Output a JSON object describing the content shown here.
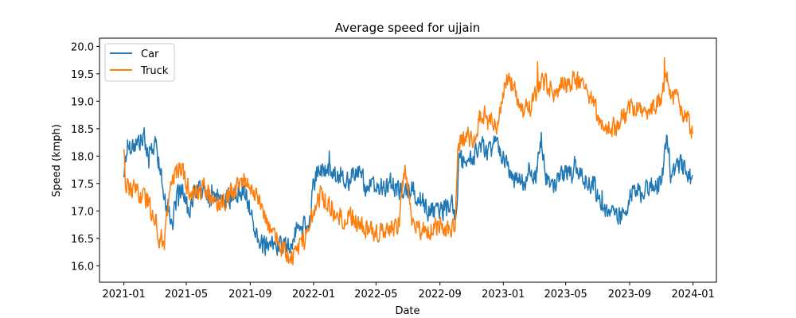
{
  "chart_data": {
    "type": "line",
    "title": "Average speed for ujjain",
    "xlabel": "Date",
    "ylabel": "Speed (kmph)",
    "x_start": "2021-01-01",
    "x_end": "2023-12-31",
    "xlim": [
      "2020-11-15",
      "2024-02-15"
    ],
    "ylim": [
      15.7,
      20.15
    ],
    "x_ticks": [
      "2021-01",
      "2021-05",
      "2021-09",
      "2022-01",
      "2022-05",
      "2022-09",
      "2023-01",
      "2023-05",
      "2023-09",
      "2024-01"
    ],
    "y_ticks": [
      "16.0",
      "16.5",
      "17.0",
      "17.5",
      "18.0",
      "18.5",
      "19.0",
      "19.5",
      "20.0"
    ],
    "grid": false,
    "legend_position": "top-left",
    "series": [
      {
        "name": "Car",
        "color": "#1f77b4",
        "points": [
          [
            "2021-01-01",
            17.7
          ],
          [
            "2021-01-08",
            18.2
          ],
          [
            "2021-01-20",
            18.2
          ],
          [
            "2021-02-05",
            18.3
          ],
          [
            "2021-02-20",
            18.1
          ],
          [
            "2021-03-05",
            18.2
          ],
          [
            "2021-03-15",
            17.5
          ],
          [
            "2021-03-25",
            17.1
          ],
          [
            "2021-04-05",
            16.8
          ],
          [
            "2021-04-15",
            17.3
          ],
          [
            "2021-04-25",
            17.4
          ],
          [
            "2021-05-05",
            17.0
          ],
          [
            "2021-05-15",
            17.3
          ],
          [
            "2021-06-01",
            17.4
          ],
          [
            "2021-06-15",
            17.2
          ],
          [
            "2021-07-01",
            17.3
          ],
          [
            "2021-07-15",
            17.2
          ],
          [
            "2021-08-01",
            17.3
          ],
          [
            "2021-08-20",
            17.4
          ],
          [
            "2021-09-01",
            17.0
          ],
          [
            "2021-09-10",
            16.6
          ],
          [
            "2021-09-25",
            16.4
          ],
          [
            "2021-10-10",
            16.3
          ],
          [
            "2021-10-25",
            16.4
          ],
          [
            "2021-11-10",
            16.3
          ],
          [
            "2021-11-25",
            16.6
          ],
          [
            "2021-12-10",
            16.7
          ],
          [
            "2021-12-25",
            16.8
          ],
          [
            "2022-01-01",
            17.5
          ],
          [
            "2022-01-10",
            17.8
          ],
          [
            "2022-01-25",
            17.7
          ],
          [
            "2022-02-10",
            17.6
          ],
          [
            "2022-02-25",
            17.7
          ],
          [
            "2022-03-10",
            17.5
          ],
          [
            "2022-03-25",
            17.8
          ],
          [
            "2022-04-10",
            17.5
          ],
          [
            "2022-04-25",
            17.4
          ],
          [
            "2022-05-10",
            17.4
          ],
          [
            "2022-05-25",
            17.5
          ],
          [
            "2022-06-10",
            17.4
          ],
          [
            "2022-06-25",
            17.3
          ],
          [
            "2022-07-10",
            17.4
          ],
          [
            "2022-07-25",
            17.2
          ],
          [
            "2022-08-10",
            17.0
          ],
          [
            "2022-08-25",
            17.0
          ],
          [
            "2022-09-10",
            17.0
          ],
          [
            "2022-09-25",
            17.1
          ],
          [
            "2022-10-01",
            16.9
          ],
          [
            "2022-10-08",
            17.9
          ],
          [
            "2022-10-20",
            17.9
          ],
          [
            "2022-11-05",
            18.0
          ],
          [
            "2022-11-20",
            18.2
          ],
          [
            "2022-12-05",
            18.1
          ],
          [
            "2022-12-20",
            18.3
          ],
          [
            "2023-01-05",
            17.9
          ],
          [
            "2023-01-20",
            17.6
          ],
          [
            "2023-02-05",
            17.5
          ],
          [
            "2023-02-20",
            17.7
          ],
          [
            "2023-03-05",
            17.7
          ],
          [
            "2023-03-15",
            18.3
          ],
          [
            "2023-03-25",
            17.6
          ],
          [
            "2023-04-10",
            17.4
          ],
          [
            "2023-04-25",
            17.7
          ],
          [
            "2023-05-10",
            17.7
          ],
          [
            "2023-05-25",
            17.7
          ],
          [
            "2023-06-10",
            17.5
          ],
          [
            "2023-06-25",
            17.5
          ],
          [
            "2023-07-05",
            17.1
          ],
          [
            "2023-07-20",
            16.9
          ],
          [
            "2023-08-05",
            16.9
          ],
          [
            "2023-08-20",
            16.9
          ],
          [
            "2023-09-01",
            17.2
          ],
          [
            "2023-09-15",
            17.4
          ],
          [
            "2023-09-25",
            17.3
          ],
          [
            "2023-10-10",
            17.5
          ],
          [
            "2023-10-25",
            17.5
          ],
          [
            "2023-11-05",
            17.7
          ],
          [
            "2023-11-12",
            18.5
          ],
          [
            "2023-11-20",
            17.6
          ],
          [
            "2023-12-05",
            17.8
          ],
          [
            "2023-12-20",
            17.8
          ],
          [
            "2023-12-31",
            17.5
          ]
        ]
      },
      {
        "name": "Truck",
        "color": "#ff7f0e",
        "points": [
          [
            "2021-01-01",
            18.2
          ],
          [
            "2021-01-05",
            17.4
          ],
          [
            "2021-01-15",
            17.4
          ],
          [
            "2021-02-01",
            17.3
          ],
          [
            "2021-02-15",
            17.2
          ],
          [
            "2021-03-01",
            16.9
          ],
          [
            "2021-03-10",
            16.5
          ],
          [
            "2021-03-20",
            16.5
          ],
          [
            "2021-03-28",
            17.2
          ],
          [
            "2021-04-05",
            17.6
          ],
          [
            "2021-04-15",
            17.8
          ],
          [
            "2021-04-25",
            17.7
          ],
          [
            "2021-05-05",
            17.4
          ],
          [
            "2021-05-20",
            17.3
          ],
          [
            "2021-06-05",
            17.4
          ],
          [
            "2021-06-20",
            17.2
          ],
          [
            "2021-07-05",
            17.1
          ],
          [
            "2021-07-20",
            17.3
          ],
          [
            "2021-08-05",
            17.4
          ],
          [
            "2021-08-20",
            17.6
          ],
          [
            "2021-09-05",
            17.3
          ],
          [
            "2021-09-20",
            17.2
          ],
          [
            "2021-10-05",
            16.8
          ],
          [
            "2021-10-20",
            16.5
          ],
          [
            "2021-11-05",
            16.3
          ],
          [
            "2021-11-20",
            16.1
          ],
          [
            "2021-12-05",
            16.3
          ],
          [
            "2021-12-20",
            16.6
          ],
          [
            "2022-01-01",
            17.0
          ],
          [
            "2022-01-15",
            17.3
          ],
          [
            "2022-02-01",
            17.1
          ],
          [
            "2022-02-15",
            16.9
          ],
          [
            "2022-03-01",
            16.8
          ],
          [
            "2022-03-15",
            16.9
          ],
          [
            "2022-04-01",
            16.7
          ],
          [
            "2022-04-15",
            16.7
          ],
          [
            "2022-05-01",
            16.6
          ],
          [
            "2022-05-15",
            16.7
          ],
          [
            "2022-06-01",
            16.7
          ],
          [
            "2022-06-15",
            16.8
          ],
          [
            "2022-06-25",
            17.8
          ],
          [
            "2022-07-10",
            16.8
          ],
          [
            "2022-07-25",
            16.7
          ],
          [
            "2022-08-10",
            16.6
          ],
          [
            "2022-08-25",
            16.7
          ],
          [
            "2022-09-10",
            16.7
          ],
          [
            "2022-09-25",
            16.7
          ],
          [
            "2022-10-01",
            16.8
          ],
          [
            "2022-10-05",
            18.2
          ],
          [
            "2022-10-20",
            18.4
          ],
          [
            "2022-11-05",
            18.3
          ],
          [
            "2022-11-20",
            18.8
          ],
          [
            "2022-12-05",
            18.6
          ],
          [
            "2022-12-20",
            18.5
          ],
          [
            "2023-01-05",
            19.3
          ],
          [
            "2023-01-20",
            19.3
          ],
          [
            "2023-02-05",
            18.8
          ],
          [
            "2023-02-20",
            18.9
          ],
          [
            "2023-03-05",
            19.1
          ],
          [
            "2023-03-15",
            19.4
          ],
          [
            "2023-04-01",
            19.2
          ],
          [
            "2023-04-15",
            19.2
          ],
          [
            "2023-05-01",
            19.3
          ],
          [
            "2023-05-15",
            19.4
          ],
          [
            "2023-06-01",
            19.3
          ],
          [
            "2023-06-15",
            19.1
          ],
          [
            "2023-07-01",
            18.8
          ],
          [
            "2023-07-15",
            18.5
          ],
          [
            "2023-08-01",
            18.5
          ],
          [
            "2023-08-15",
            18.6
          ],
          [
            "2023-09-01",
            18.9
          ],
          [
            "2023-09-15",
            18.9
          ],
          [
            "2023-10-01",
            18.8
          ],
          [
            "2023-10-15",
            18.9
          ],
          [
            "2023-11-01",
            19.0
          ],
          [
            "2023-11-10",
            19.6
          ],
          [
            "2023-11-20",
            19.1
          ],
          [
            "2023-12-05",
            19.0
          ],
          [
            "2023-12-20",
            18.7
          ],
          [
            "2023-12-31",
            18.4
          ]
        ]
      }
    ]
  }
}
